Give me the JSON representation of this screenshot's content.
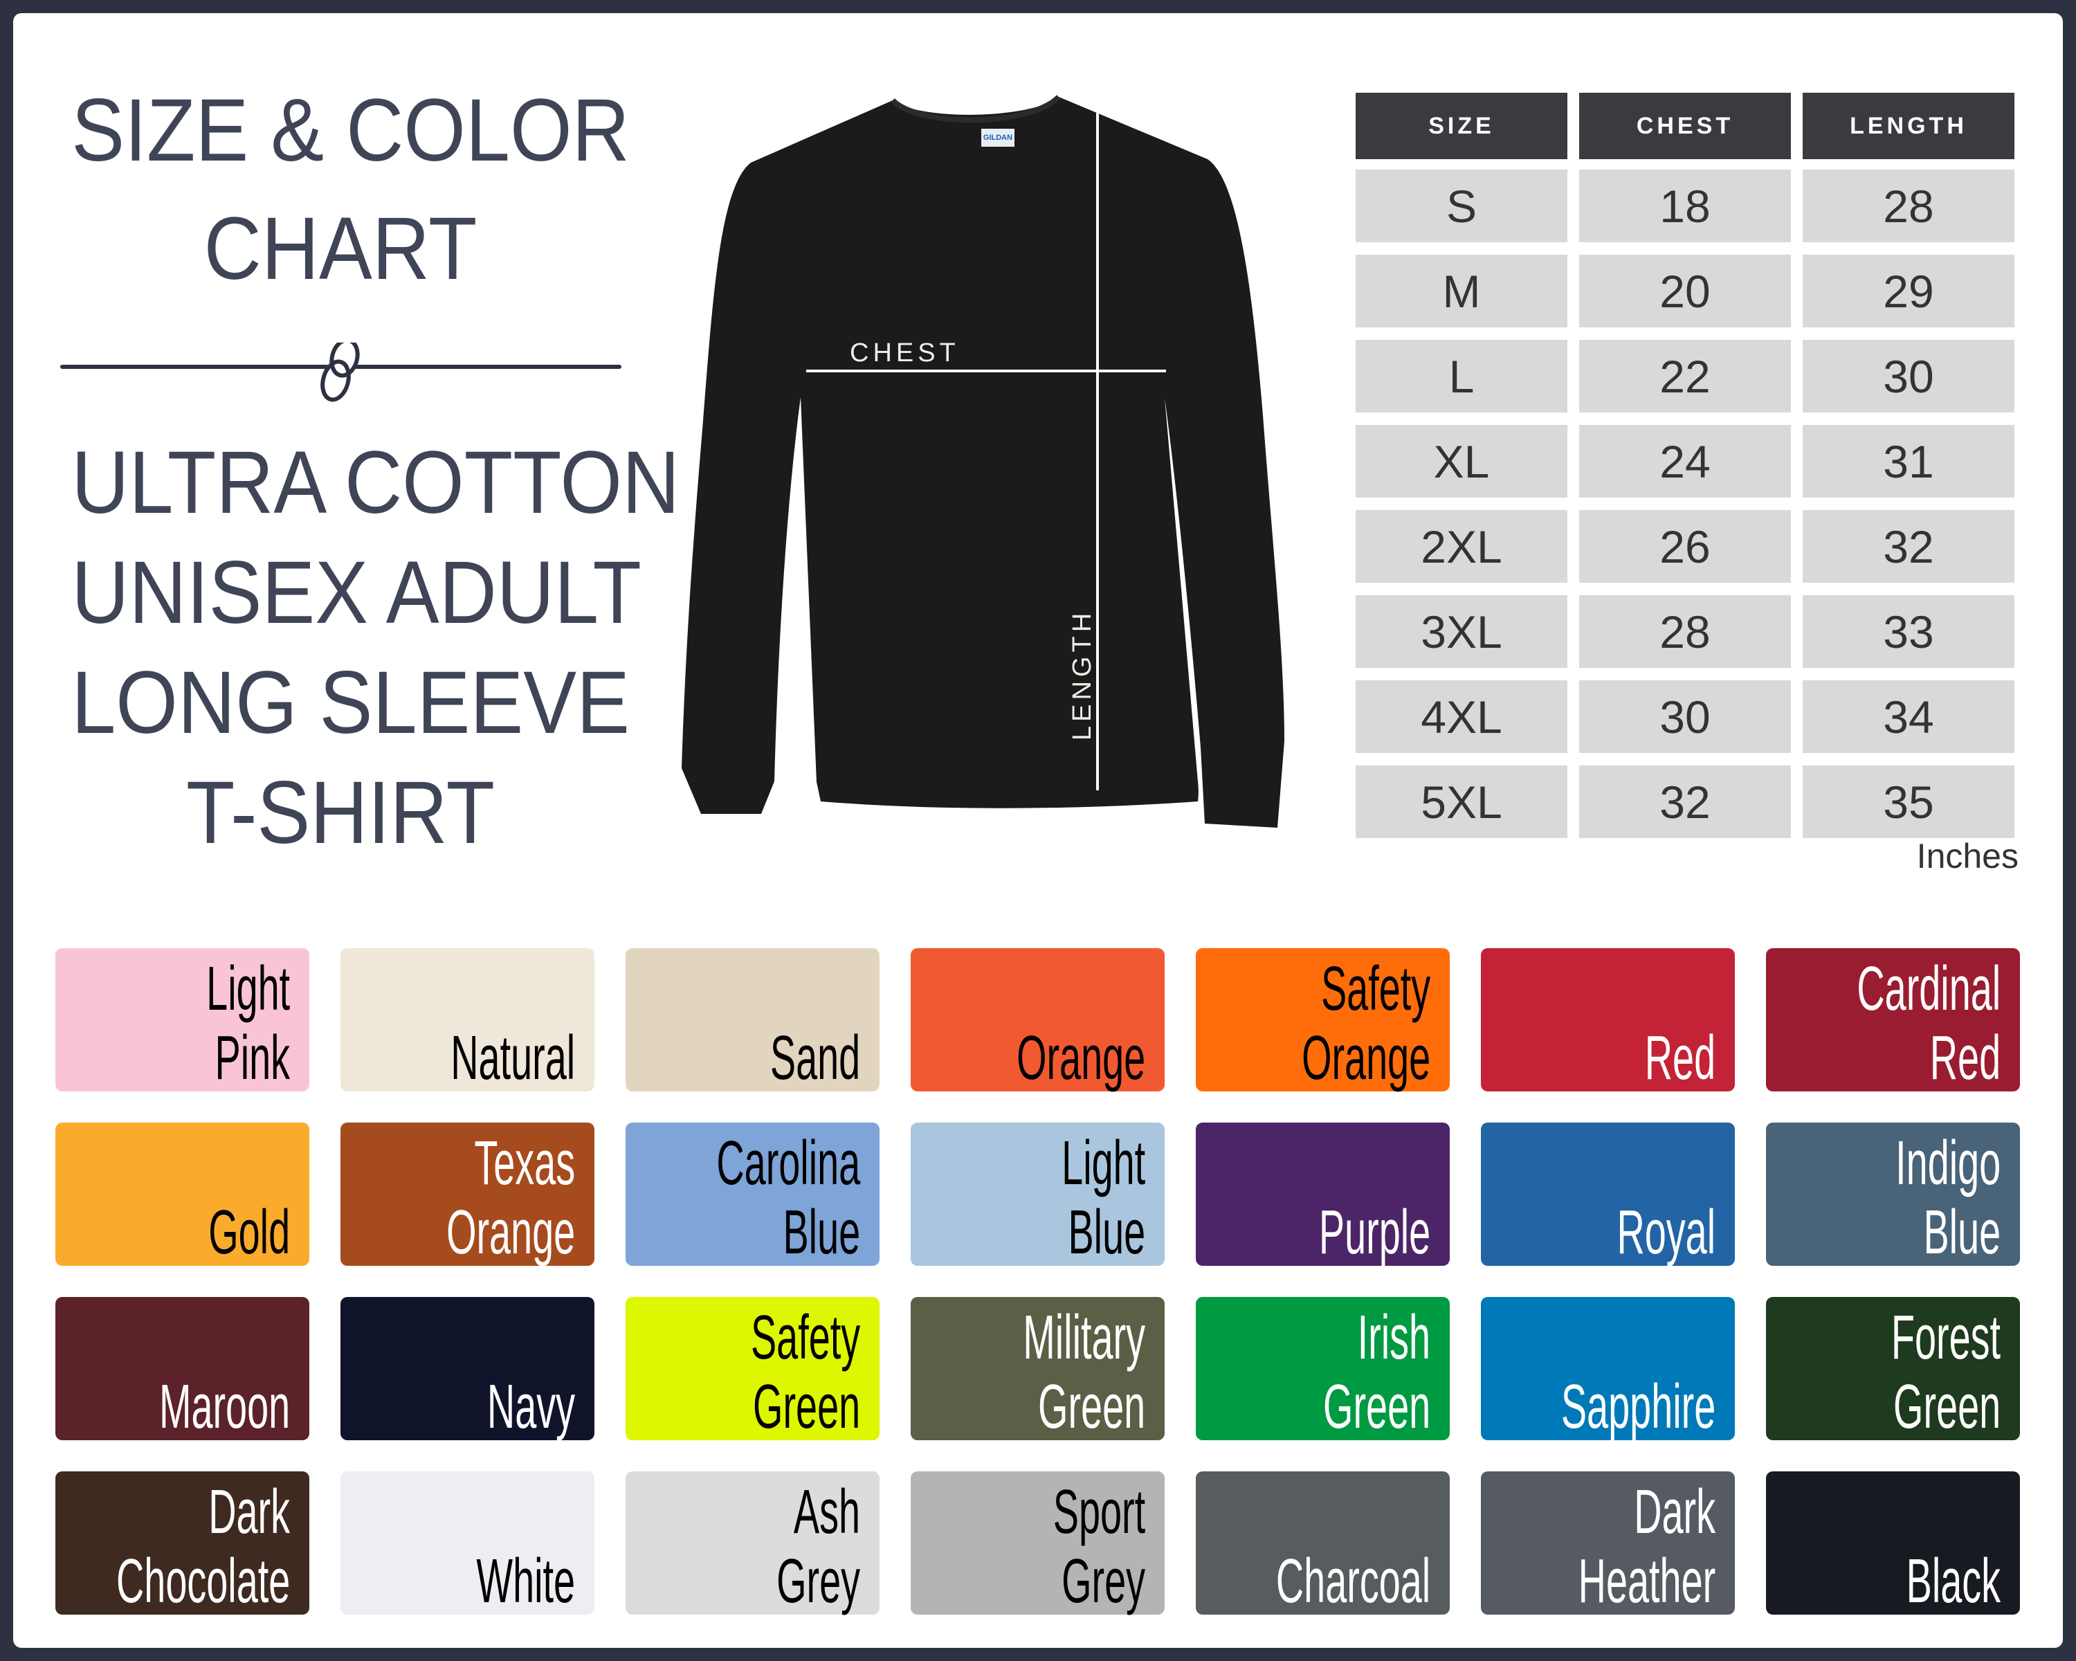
{
  "title": {
    "heading_lines": [
      "SIZE & COLOR",
      "CHART"
    ],
    "product_lines": [
      "ULTRA COTTON",
      "UNISEX ADULT",
      "LONG SLEEVE",
      "T-SHIRT"
    ]
  },
  "shirt": {
    "chest_label": "CHEST",
    "length_label": "LENGTH",
    "tag_text": "GILDAN",
    "color": "#1b1b1c"
  },
  "size_table": {
    "headers": [
      "SIZE",
      "CHEST",
      "LENGTH"
    ],
    "rows": [
      [
        "S",
        "18",
        "28"
      ],
      [
        "M",
        "20",
        "29"
      ],
      [
        "L",
        "22",
        "30"
      ],
      [
        "XL",
        "24",
        "31"
      ],
      [
        "2XL",
        "26",
        "32"
      ],
      [
        "3XL",
        "28",
        "33"
      ],
      [
        "4XL",
        "30",
        "34"
      ],
      [
        "5XL",
        "32",
        "35"
      ]
    ],
    "unit": "Inches"
  },
  "colors": {
    "frame": "#2d3142",
    "text": "#3f4456",
    "header_bg": "#3a3a40",
    "cell_bg": "#d9d9d9"
  },
  "swatches": [
    {
      "lines": [
        "Light",
        "Pink"
      ],
      "color": "#f9c5d5",
      "text_color": "#000000"
    },
    {
      "lines": [
        "Natural"
      ],
      "color": "#efe8da",
      "text_color": "#000000"
    },
    {
      "lines": [
        "Sand"
      ],
      "color": "#e2d5c0",
      "text_color": "#000000"
    },
    {
      "lines": [
        "Orange"
      ],
      "color": "#f15a31",
      "text_color": "#000000"
    },
    {
      "lines": [
        "Safety",
        "Orange"
      ],
      "color": "#ff6d0a",
      "text_color": "#000000"
    },
    {
      "lines": [
        "Red"
      ],
      "color": "#c42236",
      "text_color": "#ffffff"
    },
    {
      "lines": [
        "Cardinal",
        "Red"
      ],
      "color": "#9a1c30",
      "text_color": "#ffffff"
    },
    {
      "lines": [
        "Gold"
      ],
      "color": "#fbab2c",
      "text_color": "#000000"
    },
    {
      "lines": [
        "Texas",
        "Orange"
      ],
      "color": "#a64b1e",
      "text_color": "#ffffff"
    },
    {
      "lines": [
        "Carolina",
        "Blue"
      ],
      "color": "#7ea4d8",
      "text_color": "#000000"
    },
    {
      "lines": [
        "Light",
        "Blue"
      ],
      "color": "#a9c6de",
      "text_color": "#000000"
    },
    {
      "lines": [
        "Purple"
      ],
      "color": "#4c2568",
      "text_color": "#ffffff"
    },
    {
      "lines": [
        "Royal"
      ],
      "color": "#2364a5",
      "text_color": "#ffffff"
    },
    {
      "lines": [
        "Indigo",
        "Blue"
      ],
      "color": "#496378",
      "text_color": "#ffffff"
    },
    {
      "lines": [
        "Maroon"
      ],
      "color": "#5c2229",
      "text_color": "#ffffff"
    },
    {
      "lines": [
        "Navy"
      ],
      "color": "#10142b",
      "text_color": "#ffffff"
    },
    {
      "lines": [
        "Safety",
        "Green"
      ],
      "color": "#dcf700",
      "text_color": "#000000"
    },
    {
      "lines": [
        "Military",
        "Green"
      ],
      "color": "#5a5f45",
      "text_color": "#ffffff"
    },
    {
      "lines": [
        "Irish",
        "Green"
      ],
      "color": "#009a42",
      "text_color": "#ffffff"
    },
    {
      "lines": [
        "Sapphire"
      ],
      "color": "#0079b8",
      "text_color": "#ffffff"
    },
    {
      "lines": [
        "Forest",
        "Green"
      ],
      "color": "#1e3a1f",
      "text_color": "#ffffff"
    },
    {
      "lines": [
        "Dark",
        "Chocolate"
      ],
      "color": "#3e2a20",
      "text_color": "#ffffff"
    },
    {
      "lines": [
        "White"
      ],
      "color": "#eeeef2",
      "text_color": "#000000"
    },
    {
      "lines": [
        "Ash",
        "Grey"
      ],
      "color": "#dcdcdc",
      "text_color": "#000000"
    },
    {
      "lines": [
        "Sport",
        "Grey"
      ],
      "color": "#b4b4b4",
      "text_color": "#000000"
    },
    {
      "lines": [
        "Charcoal"
      ],
      "color": "#575c5e",
      "text_color": "#ffffff"
    },
    {
      "lines": [
        "Dark",
        "Heather"
      ],
      "color": "#565a62",
      "text_color": "#ffffff"
    },
    {
      "lines": [
        "Black"
      ],
      "color": "#171a21",
      "text_color": "#ffffff"
    }
  ]
}
